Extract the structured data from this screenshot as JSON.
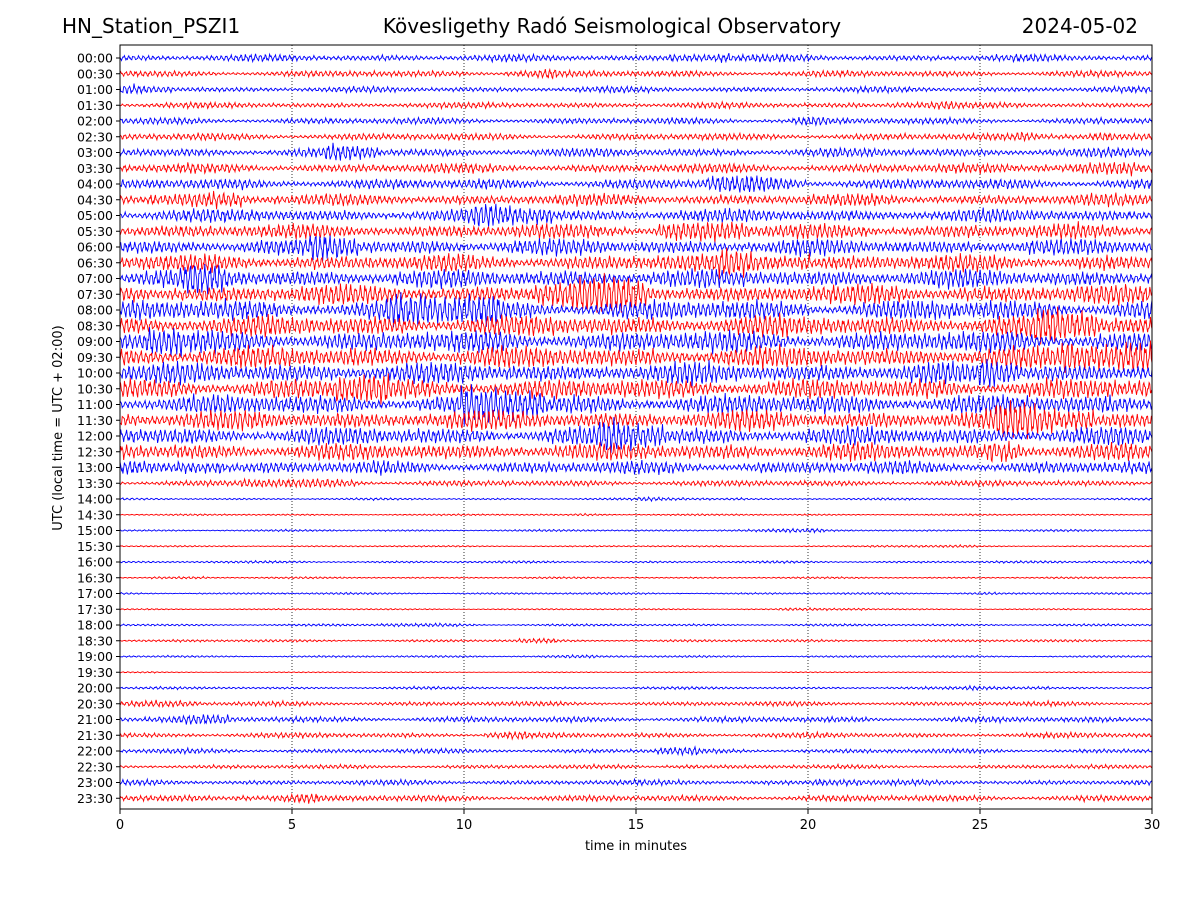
{
  "header": {
    "station": "HN_Station_PSZI1",
    "observatory": "Kövesligethy Radó Seismological Observatory",
    "date": "2024-05-02"
  },
  "chart_data": {
    "type": "line",
    "title": "Kövesligethy Radó Seismological Observatory",
    "xlabel": "time in minutes",
    "ylabel": "UTC (local time = UTC + 02:00)",
    "xlim": [
      0,
      30
    ],
    "x_ticks": [
      "0",
      "5",
      "10",
      "15",
      "20",
      "25",
      "30"
    ],
    "grid": "vertical dotted lines at 5, 10, 15, 20, 25 minutes",
    "colors": {
      "even_row": "#0000ff",
      "odd_row": "#ff0000"
    },
    "rows": [
      "00:00",
      "00:30",
      "01:00",
      "01:30",
      "02:00",
      "02:30",
      "03:00",
      "03:30",
      "04:00",
      "04:30",
      "05:00",
      "05:30",
      "06:00",
      "06:30",
      "07:00",
      "07:30",
      "08:00",
      "08:30",
      "09:00",
      "09:30",
      "10:00",
      "10:30",
      "11:00",
      "11:30",
      "12:00",
      "12:30",
      "13:00",
      "13:30",
      "14:00",
      "14:30",
      "15:00",
      "15:30",
      "16:00",
      "16:30",
      "17:00",
      "17:30",
      "18:00",
      "18:30",
      "19:00",
      "19:30",
      "20:00",
      "20:30",
      "21:00",
      "21:30",
      "22:00",
      "22:30",
      "23:00",
      "23:30"
    ],
    "relative_activity": [
      2.4,
      2.2,
      2.0,
      2.0,
      2.2,
      2.4,
      3.0,
      3.2,
      3.6,
      4.0,
      4.5,
      5.0,
      5.5,
      5.8,
      6.2,
      6.6,
      7.0,
      7.2,
      7.4,
      7.4,
      7.2,
      7.0,
      6.8,
      6.6,
      6.2,
      5.8,
      4.5,
      2.0,
      0.7,
      0.6,
      0.7,
      0.5,
      0.8,
      0.6,
      0.7,
      0.5,
      0.8,
      0.9,
      0.7,
      0.3,
      0.9,
      1.6,
      2.0,
      1.8,
      1.6,
      1.4,
      1.8,
      2.2
    ]
  }
}
